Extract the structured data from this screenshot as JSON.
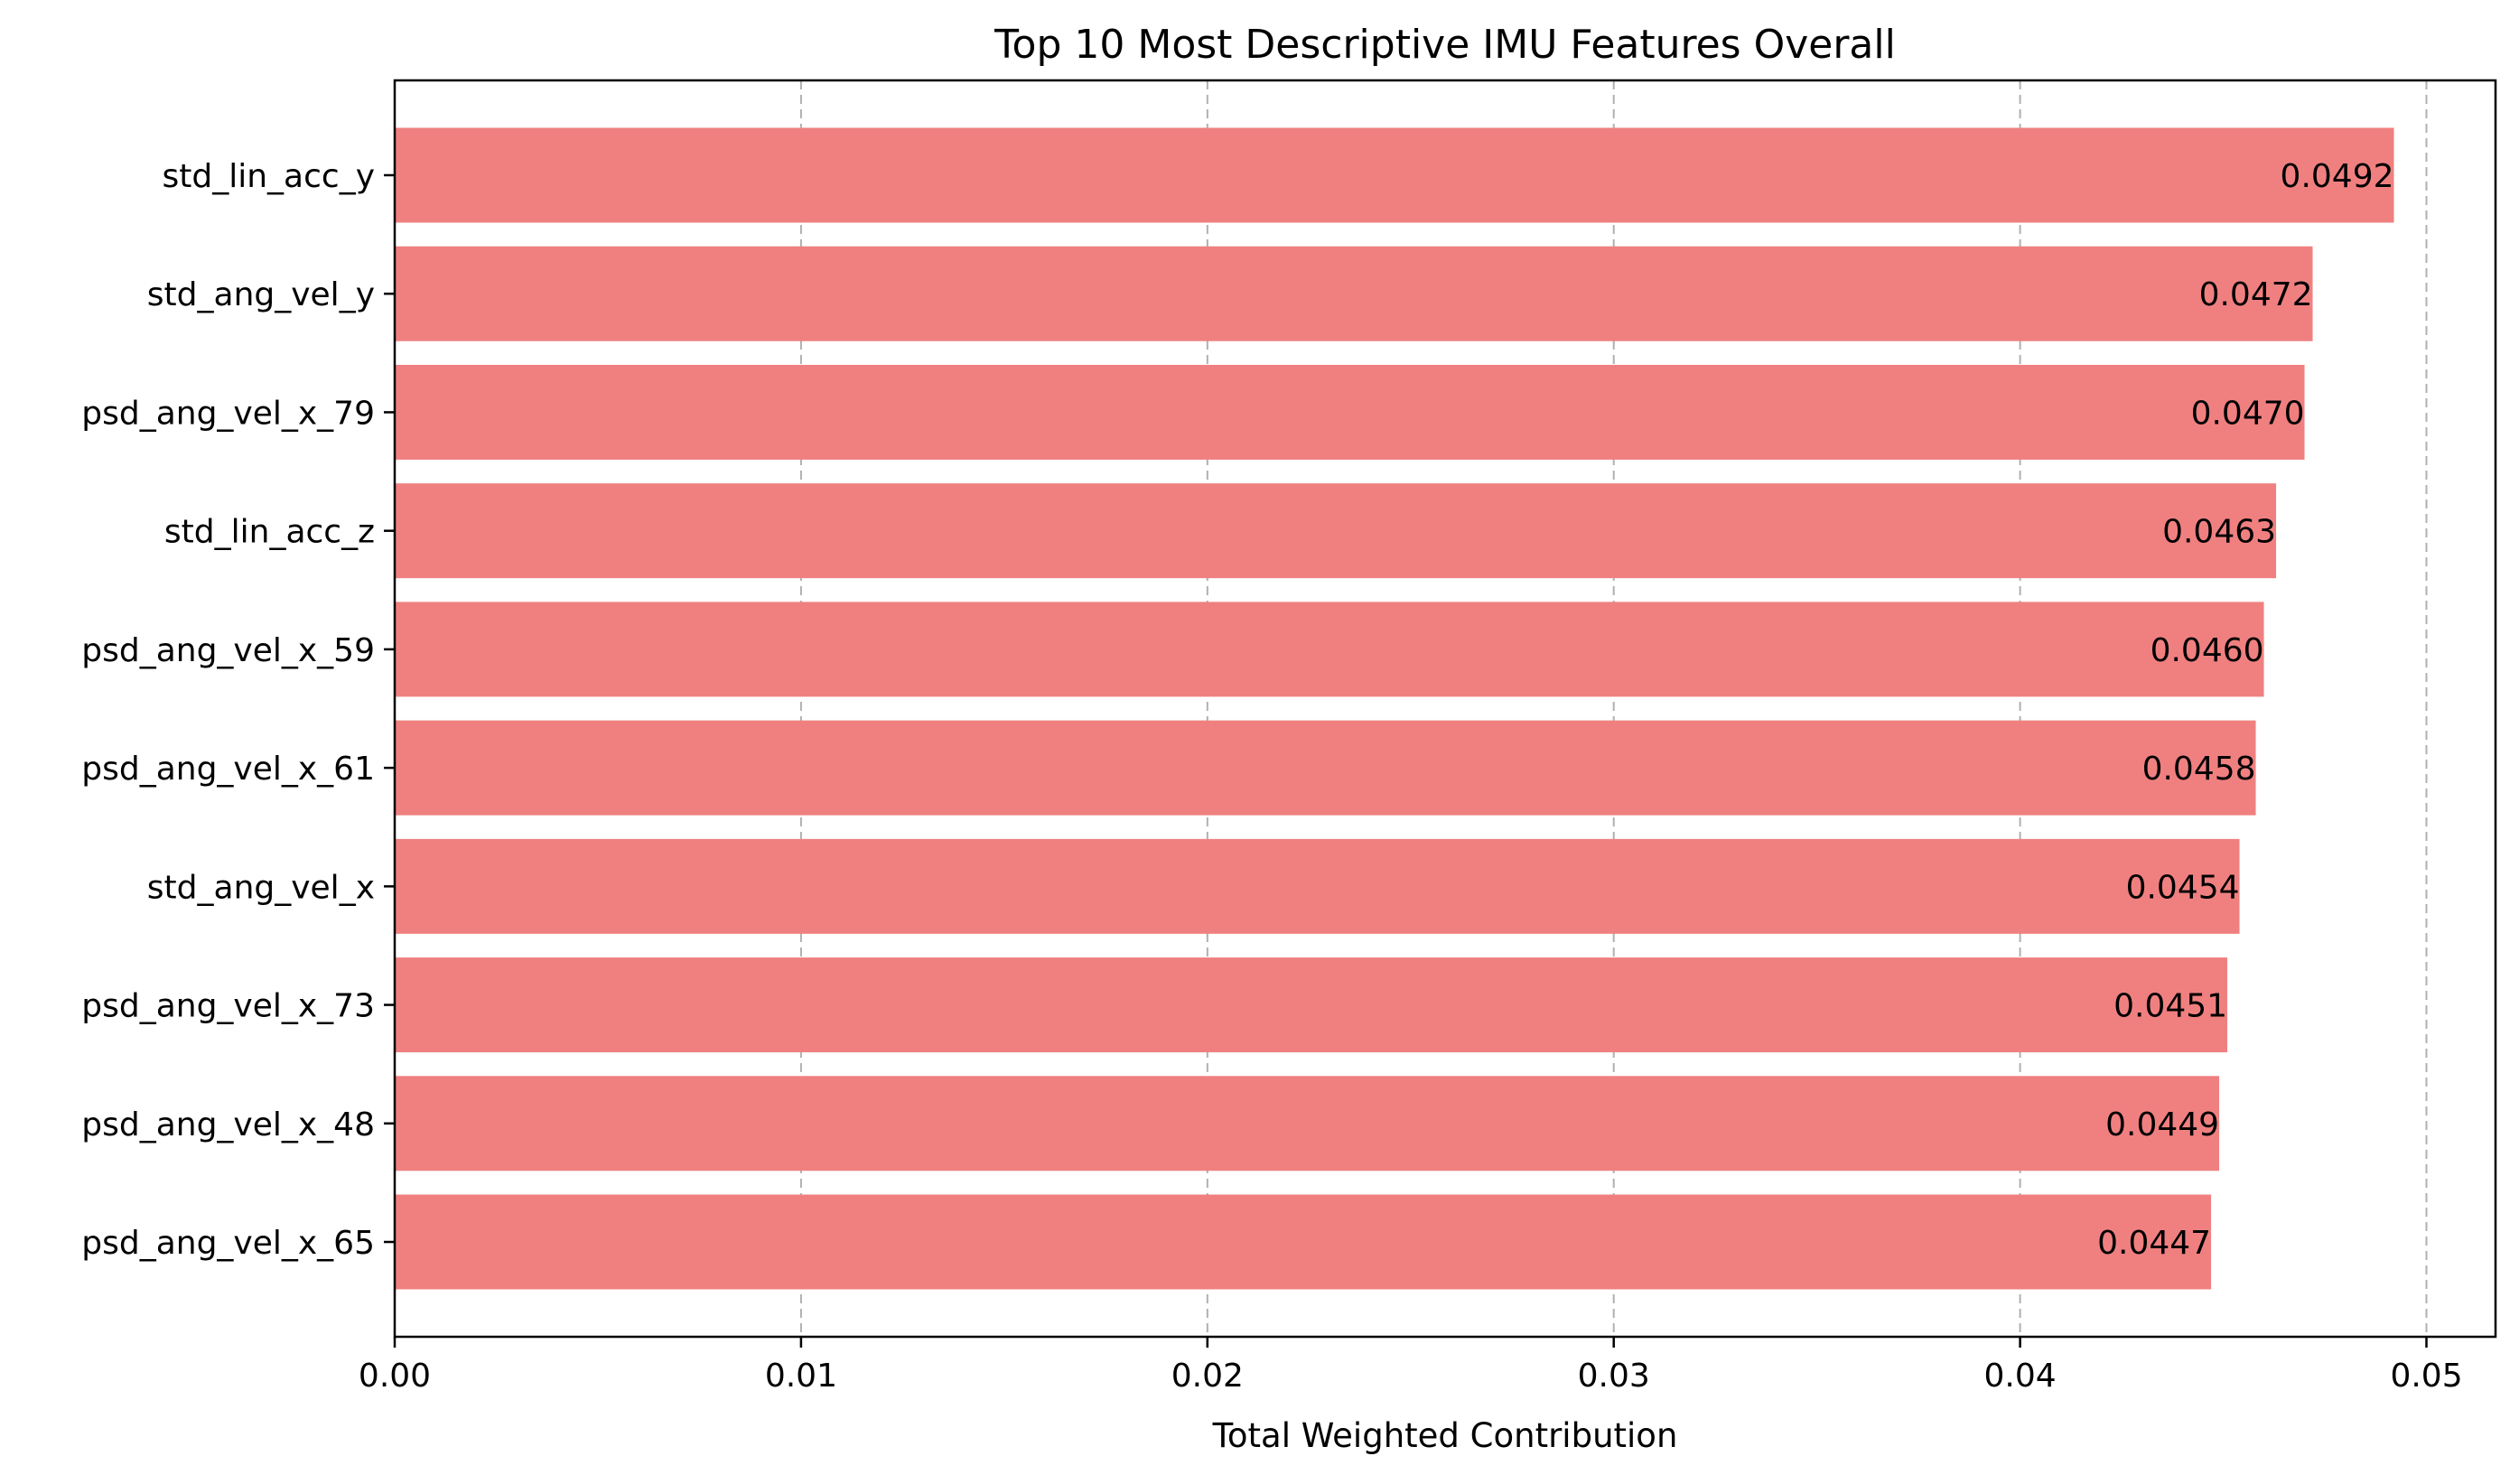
{
  "chart_data": {
    "type": "bar",
    "orientation": "horizontal",
    "title": "Top 10 Most Descriptive IMU Features Overall",
    "xlabel": "Total Weighted Contribution",
    "ylabel": "",
    "categories": [
      "std_lin_acc_y",
      "std_ang_vel_y",
      "psd_ang_vel_x_79",
      "std_lin_acc_z",
      "psd_ang_vel_x_59",
      "psd_ang_vel_x_61",
      "std_ang_vel_x",
      "psd_ang_vel_x_73",
      "psd_ang_vel_x_48",
      "psd_ang_vel_x_65"
    ],
    "values": [
      0.0492,
      0.0472,
      0.047,
      0.0463,
      0.046,
      0.0458,
      0.0454,
      0.0451,
      0.0449,
      0.0447
    ],
    "value_labels": [
      "0.0492",
      "0.0472",
      "0.0470",
      "0.0463",
      "0.0460",
      "0.0458",
      "0.0454",
      "0.0451",
      "0.0449",
      "0.0447"
    ],
    "xlim": [
      0,
      0.0517
    ],
    "xticks": [
      0.0,
      0.01,
      0.02,
      0.03,
      0.04,
      0.05
    ],
    "xtick_labels": [
      "0.00",
      "0.01",
      "0.02",
      "0.03",
      "0.04",
      "0.05"
    ],
    "grid": "x dashed",
    "legend": "none",
    "colors": {
      "bar": "#f08080",
      "grid": "#b0b0b0",
      "axis": "#000000"
    }
  }
}
